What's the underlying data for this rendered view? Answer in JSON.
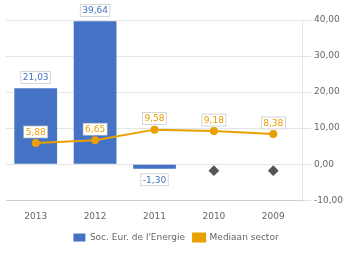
{
  "chart_data": {
    "type": "bar",
    "categories": [
      "2013",
      "2012",
      "2011",
      "2010",
      "2009"
    ],
    "series": [
      {
        "name": "Soc. Eur. de l'Energie",
        "type": "bar",
        "color": "#4472C4",
        "values": [
          21.03,
          39.64,
          -1.3,
          null,
          null
        ],
        "value_labels": [
          "21,03",
          "39,64",
          "-1,30",
          null,
          null
        ]
      },
      {
        "name": "Mediaan sector",
        "type": "line",
        "color": "#E8A000",
        "marker": "circle",
        "line_style": "solid",
        "values": [
          5.88,
          6.65,
          9.58,
          9.18,
          8.38
        ],
        "value_labels": [
          "5,88",
          "6,65",
          "9,58",
          "9,18",
          "8,38"
        ]
      },
      {
        "type": "line",
        "color": "#555555",
        "marker": "diamond",
        "line_style": "none",
        "values": [
          null,
          null,
          null,
          -1.8,
          -1.8
        ]
      }
    ],
    "ylim": [
      -10,
      40
    ],
    "yticks": [
      {
        "value": -10,
        "label": "-10,00"
      },
      {
        "value": 0,
        "label": "0,00"
      },
      {
        "value": 10,
        "label": "10,00"
      },
      {
        "value": 20,
        "label": "20,00"
      },
      {
        "value": 30,
        "label": "30,00"
      },
      {
        "value": 40,
        "label": "40,00"
      }
    ],
    "grid": true,
    "legend": "bottom",
    "data_labels": true
  }
}
